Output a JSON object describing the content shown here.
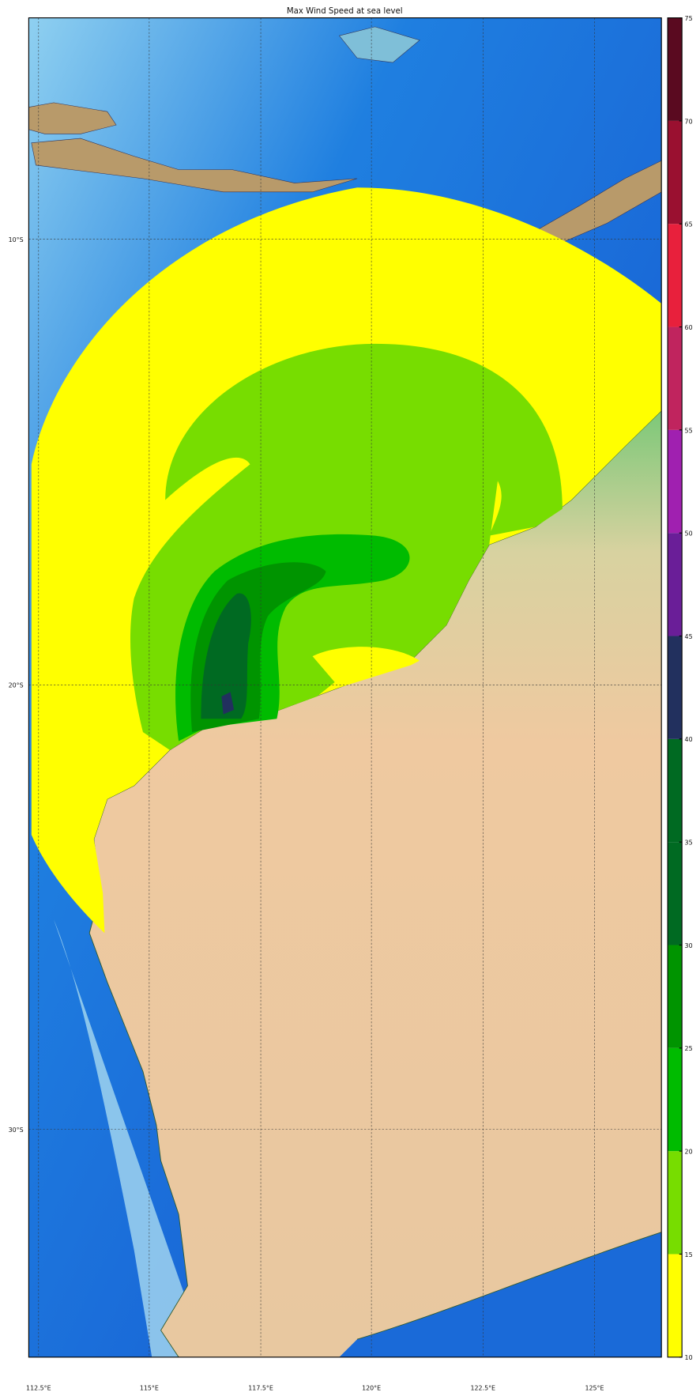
{
  "title": "Max Wind Speed at sea level",
  "map": {
    "latitude_labels": [
      "10°S",
      "20°S",
      "30°S"
    ],
    "longitude_labels": [
      "112.5°E",
      "115°E",
      "117.5°E",
      "120°E",
      "122.5°E",
      "125°E"
    ],
    "colors": {
      "ocean_deep": "#0a55c8",
      "ocean_shallow": "#a8daf0",
      "land": "#efc9a0",
      "coast_green": "#5cb85c"
    }
  },
  "colorbar": {
    "ticks": [
      "10",
      "15",
      "20",
      "25",
      "30",
      "35",
      "40",
      "45",
      "50",
      "55",
      "60",
      "65",
      "70",
      "75"
    ],
    "levels": [
      {
        "from": 10,
        "to": 15,
        "color": "#ffff00"
      },
      {
        "from": 15,
        "to": 20,
        "color": "#77dd00"
      },
      {
        "from": 20,
        "to": 25,
        "color": "#00bb00"
      },
      {
        "from": 25,
        "to": 30,
        "color": "#009400"
      },
      {
        "from": 30,
        "to": 35,
        "color": "#006a22"
      },
      {
        "from": 35,
        "to": 40,
        "color": "#006a22"
      },
      {
        "from": 40,
        "to": 45,
        "color": "#22305e"
      },
      {
        "from": 45,
        "to": 50,
        "color": "#6a1e98"
      },
      {
        "from": 50,
        "to": 55,
        "color": "#a020b0"
      },
      {
        "from": 55,
        "to": 60,
        "color": "#c0245e"
      },
      {
        "from": 60,
        "to": 65,
        "color": "#e8203c"
      },
      {
        "from": 65,
        "to": 70,
        "color": "#9a1030"
      },
      {
        "from": 70,
        "to": 75,
        "color": "#5a0a20"
      }
    ]
  }
}
